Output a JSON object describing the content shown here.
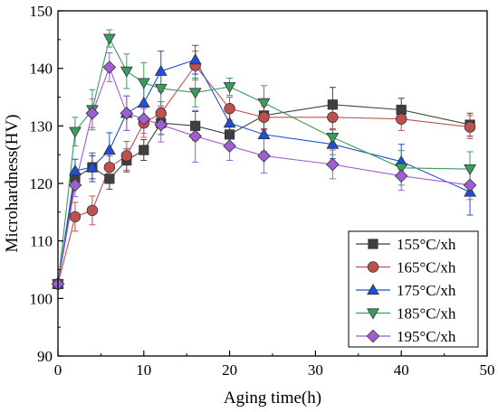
{
  "chart_data": {
    "type": "line",
    "title": "",
    "xlabel": "Aging time(h)",
    "ylabel": "Microhardness(HV)",
    "xlim": [
      0,
      50
    ],
    "ylim": [
      90,
      150
    ],
    "xticks": [
      0,
      10,
      20,
      30,
      40,
      50
    ],
    "yticks": [
      90,
      100,
      110,
      120,
      130,
      140,
      150
    ],
    "grid": false,
    "legend_position": "bottom-right",
    "x": [
      0,
      2,
      4,
      6,
      8,
      10,
      12,
      16,
      20,
      24,
      32,
      40,
      48
    ],
    "series": [
      {
        "name": "155°C/xh",
        "color": "#3f3f3f",
        "marker": "square",
        "values": [
          102.5,
          121.0,
          122.8,
          120.8,
          124.0,
          125.8,
          130.5,
          130.0,
          128.5,
          131.8,
          133.7,
          132.8,
          130.2
        ],
        "errors": [
          0,
          1.5,
          2.0,
          1.8,
          2.0,
          1.8,
          2.0,
          2.5,
          2.0,
          2.5,
          3.0,
          2.0,
          2.0
        ]
      },
      {
        "name": "165°C/xh",
        "color": "#c0504d",
        "marker": "circle",
        "values": [
          102.5,
          114.2,
          115.3,
          122.8,
          124.8,
          130.5,
          132.2,
          140.5,
          133.0,
          131.5,
          131.5,
          131.2,
          129.8
        ],
        "errors": [
          0,
          2.5,
          2.5,
          2.0,
          2.5,
          2.5,
          2.0,
          2.5,
          2.0,
          2.0,
          2.0,
          2.0,
          2.0
        ]
      },
      {
        "name": "175°C/xh",
        "color": "#1f4fd8",
        "marker": "triangle-up",
        "values": [
          102.5,
          122.2,
          122.8,
          125.8,
          132.2,
          134.0,
          139.5,
          141.5,
          130.5,
          128.5,
          126.8,
          123.8,
          118.5
        ],
        "errors": [
          0,
          2.0,
          2.5,
          3.0,
          3.0,
          3.5,
          3.5,
          2.5,
          2.5,
          3.0,
          2.5,
          3.0,
          4.0
        ]
      },
      {
        "name": "185°C/xh",
        "color": "#3a9d5d",
        "marker": "triangle-down",
        "values": [
          102.5,
          129.0,
          132.8,
          145.2,
          139.5,
          137.5,
          136.5,
          135.8,
          136.8,
          134.0,
          128.0,
          122.7,
          122.5
        ],
        "errors": [
          0,
          2.5,
          3.5,
          1.5,
          3.0,
          3.5,
          3.0,
          2.5,
          1.5,
          3.0,
          3.0,
          3.0,
          3.0
        ]
      },
      {
        "name": "195°C/xh",
        "color": "#a05fd0",
        "marker": "diamond",
        "values": [
          102.5,
          119.7,
          132.2,
          140.2,
          132.2,
          131.2,
          130.2,
          128.2,
          126.5,
          124.8,
          123.3,
          121.3,
          119.7
        ],
        "errors": [
          0,
          2.0,
          2.5,
          2.5,
          3.0,
          2.5,
          3.0,
          4.5,
          2.5,
          3.0,
          2.5,
          2.5,
          2.5
        ]
      }
    ]
  }
}
